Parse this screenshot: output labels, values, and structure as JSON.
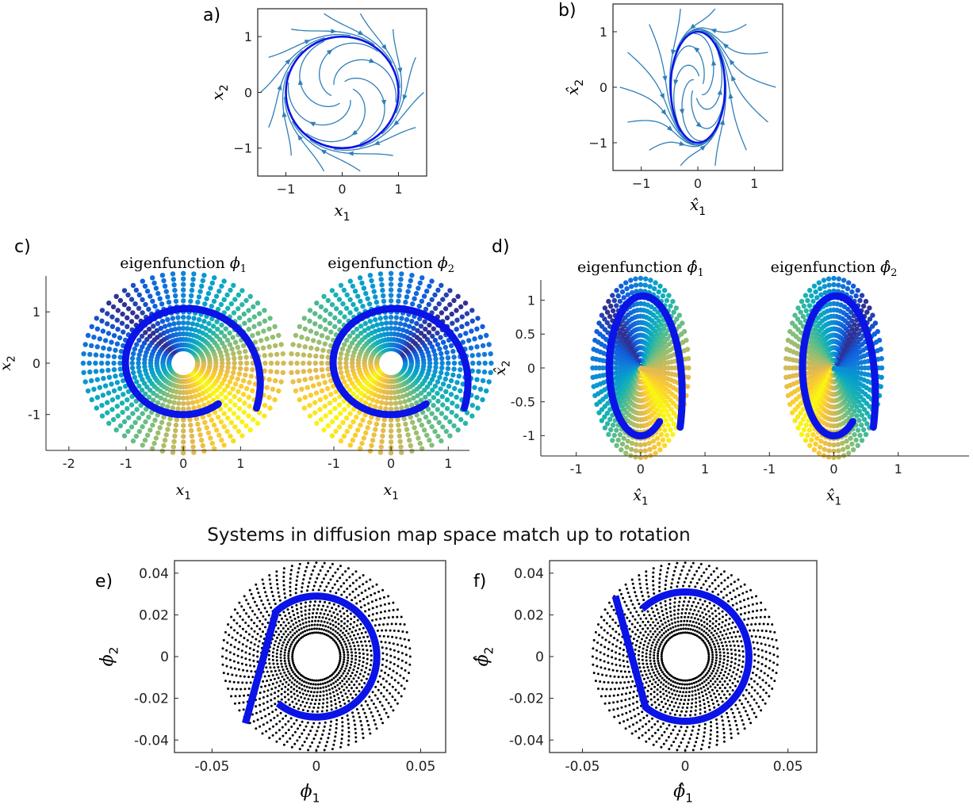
{
  "section_title": "Systems in diffusion map space match up to rotation",
  "colors": {
    "trajectory": "#0a14e6",
    "streamline": "#2f7fb8",
    "points": "#000000"
  },
  "colormap": "parula",
  "chart_data": [
    {
      "id": "a",
      "panel_label": "a)",
      "type": "streamplot",
      "xlabel": "x1",
      "ylabel": "x2",
      "xlim": [
        -1.5,
        1.5
      ],
      "ylim": [
        -1.5,
        1.5
      ],
      "xticks": [
        {
          "v": -1,
          "t": "−1"
        },
        {
          "v": 0,
          "t": "0"
        },
        {
          "v": 1,
          "t": "1"
        }
      ],
      "yticks": [
        {
          "v": -1,
          "t": "−1"
        },
        {
          "v": 0,
          "t": "0"
        },
        {
          "v": 1,
          "t": "1"
        }
      ],
      "limit_cycle": {
        "shape": "circle",
        "rx": 1.0,
        "ry": 1.0
      }
    },
    {
      "id": "b",
      "panel_label": "b)",
      "type": "streamplot",
      "xlabel": "x̂1",
      "ylabel": "x̂2",
      "xlim": [
        -1.5,
        1.5
      ],
      "ylim": [
        -1.5,
        1.5
      ],
      "xticks": [
        {
          "v": -1,
          "t": "−1"
        },
        {
          "v": 0,
          "t": "0"
        },
        {
          "v": 1,
          "t": "1"
        }
      ],
      "yticks": [
        {
          "v": -1,
          "t": "−1"
        },
        {
          "v": 0,
          "t": "0"
        },
        {
          "v": 1,
          "t": "1"
        }
      ],
      "limit_cycle": {
        "shape": "ellipse",
        "rx": 0.48,
        "ry": 1.0
      }
    },
    {
      "id": "c",
      "panel_label": "c)",
      "type": "scatter",
      "xlabel": "x1",
      "ylabel": "x2",
      "xlim": [
        -2.4,
        5.0
      ],
      "ylim": [
        -1.7,
        1.7
      ],
      "xticks": [
        {
          "v": -2,
          "t": "-2"
        },
        {
          "v": -1,
          "t": "-1"
        },
        {
          "v": 0,
          "t": "0"
        },
        {
          "v": 1,
          "t": "1"
        },
        {
          "v": 2.63,
          "t": "-1"
        },
        {
          "v": 3.63,
          "t": "0"
        },
        {
          "v": 4.63,
          "t": "1"
        }
      ],
      "yticks": [
        {
          "v": -1,
          "t": "-1"
        },
        {
          "v": 0,
          "t": "0"
        },
        {
          "v": 1,
          "t": "1"
        }
      ],
      "subplots": [
        {
          "title": "eigenfunction ",
          "phi": "ϕ",
          "sub": "1",
          "xlabel": "x1",
          "center_x": 0,
          "rx": 1.0,
          "ry": 1.0,
          "rot": 0
        },
        {
          "title": "eigenfunction ",
          "phi": "ϕ",
          "sub": "2",
          "xlabel": "x1",
          "center_x": 3.63,
          "rx": 1.0,
          "ry": 1.0,
          "rot": 90
        }
      ],
      "rays": 60,
      "r_inner": 0.25,
      "r_outer": 1.75
    },
    {
      "id": "d",
      "panel_label": "d)",
      "type": "scatter",
      "xlabel": "x̂1",
      "ylabel": "x̂2",
      "xlim": [
        -1.55,
        5.1
      ],
      "ylim": [
        -1.3,
        1.3
      ],
      "xticks": [
        {
          "v": -1,
          "t": "-1"
        },
        {
          "v": 0,
          "t": "0"
        },
        {
          "v": 1,
          "t": "1"
        },
        {
          "v": 2.0,
          "t": "-1"
        },
        {
          "v": 3.0,
          "t": "0"
        },
        {
          "v": 4.0,
          "t": "1"
        }
      ],
      "yticks": [
        {
          "v": -1,
          "t": "-1"
        },
        {
          "v": -0.5,
          "t": "-0.5"
        },
        {
          "v": 0,
          "t": "0"
        },
        {
          "v": 0.5,
          "t": "0.5"
        },
        {
          "v": 1,
          "t": "1"
        }
      ],
      "subplots": [
        {
          "title": "eigenfunction ",
          "phi": "ϕ̂",
          "sub": "1",
          "xlabel": "x̂1",
          "center_x": 0,
          "rx": 0.48,
          "ry": 1.0,
          "rot": 0
        },
        {
          "title": "eigenfunction ",
          "phi": "ϕ̂",
          "sub": "2",
          "xlabel": "x̂1",
          "center_x": 3.0,
          "rx": 0.48,
          "ry": 1.0,
          "rot": 90
        }
      ],
      "rays": 60,
      "r_inner": 0.02,
      "r_outer": 1.35
    },
    {
      "id": "e",
      "panel_label": "e)",
      "type": "scatter",
      "xlabel": "ϕ1",
      "ylabel": "ϕ2",
      "xlim": [
        -0.068,
        0.062
      ],
      "ylim": [
        -0.046,
        0.046
      ],
      "xticks": [
        {
          "v": -0.05,
          "t": "-0.05"
        },
        {
          "v": 0,
          "t": "0"
        },
        {
          "v": 0.05,
          "t": "0.05"
        }
      ],
      "yticks": [
        {
          "v": -0.04,
          "t": "-0.04"
        },
        {
          "v": -0.02,
          "t": "-0.02"
        },
        {
          "v": 0,
          "t": "0"
        },
        {
          "v": 0.02,
          "t": "0.02"
        },
        {
          "v": 0.04,
          "t": "0.04"
        }
      ],
      "rays": 72,
      "r_inner": 0.0115,
      "r_outer": 0.045,
      "cycle_radius": 0.029,
      "traj_end": [
        -0.034,
        -0.032
      ],
      "traj_start": [
        -0.018,
        -0.022
      ]
    },
    {
      "id": "f",
      "panel_label": "f)",
      "type": "scatter",
      "xlabel": "ϕ̂1",
      "ylabel": "ϕ̂2",
      "xlim": [
        -0.066,
        0.064
      ],
      "ylim": [
        -0.046,
        0.046
      ],
      "xticks": [
        {
          "v": -0.05,
          "t": "-0.05"
        },
        {
          "v": 0,
          "t": "0"
        },
        {
          "v": 0.05,
          "t": "0.05"
        }
      ],
      "yticks": [
        {
          "v": -0.04,
          "t": "-0.04"
        },
        {
          "v": -0.02,
          "t": "-0.02"
        },
        {
          "v": 0,
          "t": "0"
        },
        {
          "v": 0.02,
          "t": "0.02"
        },
        {
          "v": 0.04,
          "t": "0.04"
        }
      ],
      "rays": 72,
      "r_inner": 0.0115,
      "r_outer": 0.045,
      "cycle_radius": 0.031,
      "traj_end": [
        -0.034,
        0.029
      ],
      "traj_start": [
        -0.022,
        0.024
      ]
    }
  ]
}
